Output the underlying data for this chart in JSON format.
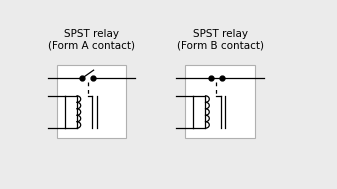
{
  "title_left": "SPST relay\n(Form A contact)",
  "title_right": "SPST relay\n(Form B contact)",
  "bg_color": "#ebebeb",
  "box_color": "#b0b0b0",
  "line_color": "#000000",
  "title_fontsize": 7.5
}
